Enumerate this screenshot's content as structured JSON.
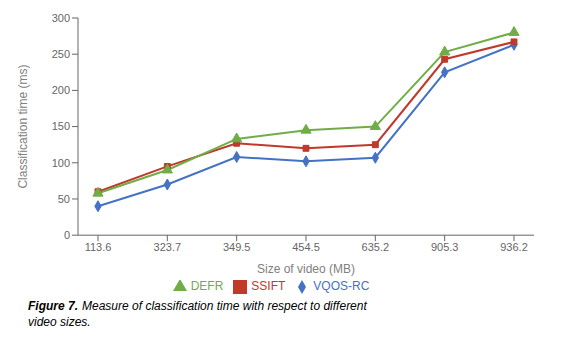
{
  "chart_data": {
    "type": "line",
    "categories": [
      "113.6",
      "323.7",
      "349.5",
      "454.5",
      "635.2",
      "905.3",
      "936.2"
    ],
    "series": [
      {
        "name": "VQOS-RC",
        "color": "#4472C4",
        "marker": "diamond",
        "values": [
          40,
          70,
          108,
          102,
          107,
          225,
          263
        ]
      },
      {
        "name": "SSIFT",
        "color": "#C0392B",
        "marker": "square",
        "values": [
          60,
          95,
          127,
          120,
          125,
          243,
          267
        ]
      },
      {
        "name": "DEFR",
        "color": "#70AD47",
        "marker": "triangle",
        "values": [
          58,
          90,
          133,
          145,
          150,
          253,
          280
        ]
      }
    ],
    "x_label": "Size of video (MB)",
    "y_label": "Classification time (ms)",
    "ylim": [
      0,
      300
    ],
    "yticks": [
      0,
      50,
      100,
      150,
      200,
      250,
      300
    ],
    "grid": false,
    "legend": "bottom",
    "annotations": [
      "Figure 7.",
      "Measure of classification time with respect to different",
      "video sizes."
    ]
  }
}
